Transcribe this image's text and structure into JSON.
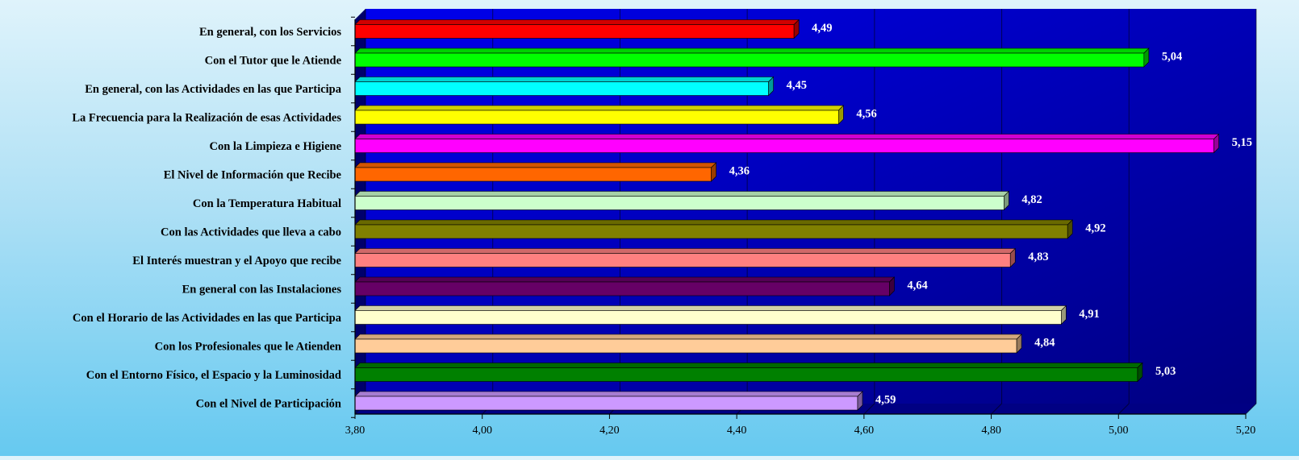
{
  "chart_data": {
    "type": "bar",
    "orientation": "horizontal",
    "title": "",
    "xlabel": "",
    "ylabel": "",
    "xlim": [
      3.8,
      5.2
    ],
    "ticks": [
      "3,80",
      "4,00",
      "4,20",
      "4,40",
      "4,60",
      "4,80",
      "5,00",
      "5,20"
    ],
    "tick_values": [
      3.8,
      4.0,
      4.2,
      4.4,
      4.6,
      4.8,
      5.0,
      5.2
    ],
    "grid": true,
    "legend": "none",
    "categories": [
      "En general, con los Servicios",
      "Con el Tutor que le Atiende",
      "En general, con las Actividades en las que Participa",
      "La Frecuencia para la Realización de esas Actividades",
      "Con la Limpieza e Higiene",
      "El Nivel de Información que Recibe",
      "Con la Temperatura Habitual",
      "Con las Actividades que lleva a cabo",
      "El Interés muestran y el Apoyo que recibe",
      "En general con las Instalaciones",
      "Con el Horario de las Actividades en las que Participa",
      "Con los Profesionales que le Atienden",
      "Con el Entorno Físico, el Espacio y la Luminosidad",
      "Con el Nivel de Participación"
    ],
    "values": [
      4.49,
      5.04,
      4.45,
      4.56,
      5.15,
      4.36,
      4.82,
      4.92,
      4.83,
      4.64,
      4.91,
      4.84,
      5.03,
      4.59
    ],
    "value_labels": [
      "4,49",
      "5,04",
      "4,45",
      "4,56",
      "5,15",
      "4,36",
      "4,82",
      "4,92",
      "4,83",
      "4,64",
      "4,91",
      "4,84",
      "5,03",
      "4,59"
    ],
    "colors": [
      "#ff0000",
      "#00ff00",
      "#00ffff",
      "#ffff00",
      "#ff00ff",
      "#ff6600",
      "#ccffcc",
      "#808000",
      "#ff8080",
      "#660066",
      "#ffffcc",
      "#ffcc99",
      "#008000",
      "#cc99ff"
    ],
    "plot_background": "#0000ee",
    "plot_background_dark": "#000080",
    "axis_color": "#000000"
  }
}
